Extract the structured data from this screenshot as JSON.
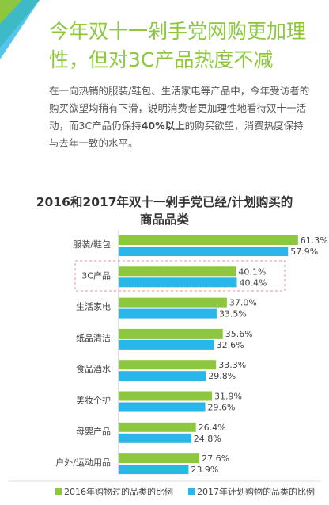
{
  "header": {
    "title": "今年双十一剁手党网购更加理性，但对3C产品热度不减"
  },
  "paragraph": [
    "在一向热销的服装/鞋包、生活家电等产品中，今年受访者的购买欲望均稍有下滑，说明消费者更加理性地看待双十一活动，而3C产品仍保持",
    "40%以上",
    "的购买欲望，消费热度保持与去年一致的水平。"
  ],
  "chart_data": {
    "type": "bar",
    "orientation": "horizontal",
    "title": "2016和2017年双十一剁手党已经/计划购买的商品品类",
    "categories": [
      "服装/鞋包",
      "3C产品",
      "生活家电",
      "纸品清洁",
      "食品酒水",
      "美妆个护",
      "母婴产品",
      "户外/运动用品"
    ],
    "series": [
      {
        "name": "2016年购物过的品类的比例",
        "color": "#8dc63f",
        "values": [
          61.3,
          40.1,
          37.0,
          35.6,
          33.3,
          31.9,
          26.4,
          27.6
        ],
        "value_labels": [
          "61.3%",
          "40.1%",
          "37.0%",
          "35.6%",
          "33.3%",
          "31.9%",
          "26.4%",
          "27.6%"
        ]
      },
      {
        "name": "2017年计划购物的品类的比例",
        "color": "#29b6e8",
        "values": [
          57.9,
          40.4,
          33.5,
          32.6,
          29.8,
          29.6,
          24.8,
          23.9
        ],
        "value_labels": [
          "57.9%",
          "40.4%",
          "33.5%",
          "32.6%",
          "29.8%",
          "29.6%",
          "24.8%",
          "23.9%"
        ]
      }
    ],
    "legend": "bottom"
  }
}
